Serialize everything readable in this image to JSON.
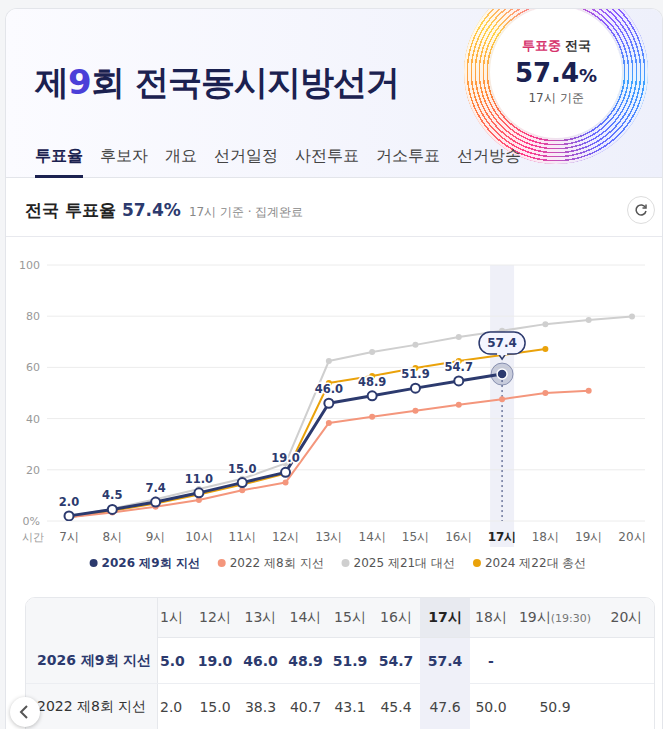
{
  "header": {
    "title": "제9회 전국동시지방선거",
    "badge": {
      "status": "투표중",
      "region": "전국",
      "value": "57.4%",
      "time": "17시 기준"
    }
  },
  "tabs": [
    "투표율",
    "후보자",
    "개요",
    "선거일정",
    "사전투표",
    "거소투표",
    "선거방송"
  ],
  "active_tab": "투표율",
  "summary": {
    "label": "전국 투표율",
    "value": "57.4%",
    "note": "17시 기준 · 집계완료"
  },
  "chart_data": {
    "type": "line",
    "categories": [
      "7시",
      "8시",
      "9시",
      "10시",
      "11시",
      "12시",
      "13시",
      "14시",
      "15시",
      "16시",
      "17시",
      "18시",
      "19시",
      "20시"
    ],
    "xlabel": "시간",
    "ylim": [
      0,
      100
    ],
    "yticks": [
      {
        "value": 0,
        "label": "0%"
      },
      20,
      40,
      60,
      80,
      100
    ],
    "grid": true,
    "legend": "bottom",
    "series": [
      {
        "name": "2026 제9회 지선",
        "color": "#2c3a6e",
        "marker": "circle-open",
        "line_style": "solid",
        "data_labels": true,
        "values": [
          2.0,
          4.5,
          7.4,
          11.0,
          15.0,
          19.0,
          46.0,
          48.9,
          51.9,
          54.7,
          57.4,
          null,
          null,
          null
        ],
        "value_labels": [
          "2.0",
          "4.5",
          "7.4",
          "11.0",
          "15.0",
          "19.0",
          "46.0",
          "48.9",
          "51.9",
          "54.7",
          "57.4",
          null,
          null,
          null
        ]
      },
      {
        "name": "2022 제8회 지선",
        "color": "#f4967c",
        "marker": "circle",
        "line_style": "solid",
        "values": [
          1.5,
          3.3,
          5.6,
          8.2,
          12.0,
          15.0,
          38.3,
          40.7,
          43.1,
          45.4,
          47.6,
          50.0,
          50.9,
          null
        ]
      },
      {
        "name": "2025 제21대 대선",
        "color": "#cfcfcf",
        "marker": "circle",
        "line_style": "solid",
        "values": [
          1.8,
          4.8,
          8.5,
          12.5,
          16.5,
          22.5,
          62.5,
          66.0,
          68.8,
          71.9,
          74.3,
          76.9,
          78.5,
          79.9
        ]
      },
      {
        "name": "2024 제22대 총선",
        "color": "#eaa20a",
        "marker": "circle",
        "line_style": "solid",
        "values": [
          1.5,
          4.0,
          6.8,
          10.3,
          14.2,
          18.5,
          53.9,
          56.6,
          59.8,
          62.5,
          64.8,
          67.2,
          null,
          null
        ]
      }
    ]
  },
  "table": {
    "columns": [
      "1시",
      "12시",
      "13시",
      "14시",
      "15시",
      "16시",
      "17시",
      "18시",
      "19시(19:30)",
      "20시"
    ],
    "highlight_column": "17시",
    "rows": [
      {
        "label": "2026 제9회 지선",
        "cells": [
          "5.0",
          "19.0",
          "46.0",
          "48.9",
          "51.9",
          "54.7",
          "57.4",
          "-",
          null,
          null
        ]
      },
      {
        "label": "2022 제8회 지선",
        "cells": [
          "2.0",
          "15.0",
          "38.3",
          "40.7",
          "43.1",
          "45.4",
          "47.6",
          "50.0",
          "50.9",
          null
        ]
      }
    ]
  }
}
